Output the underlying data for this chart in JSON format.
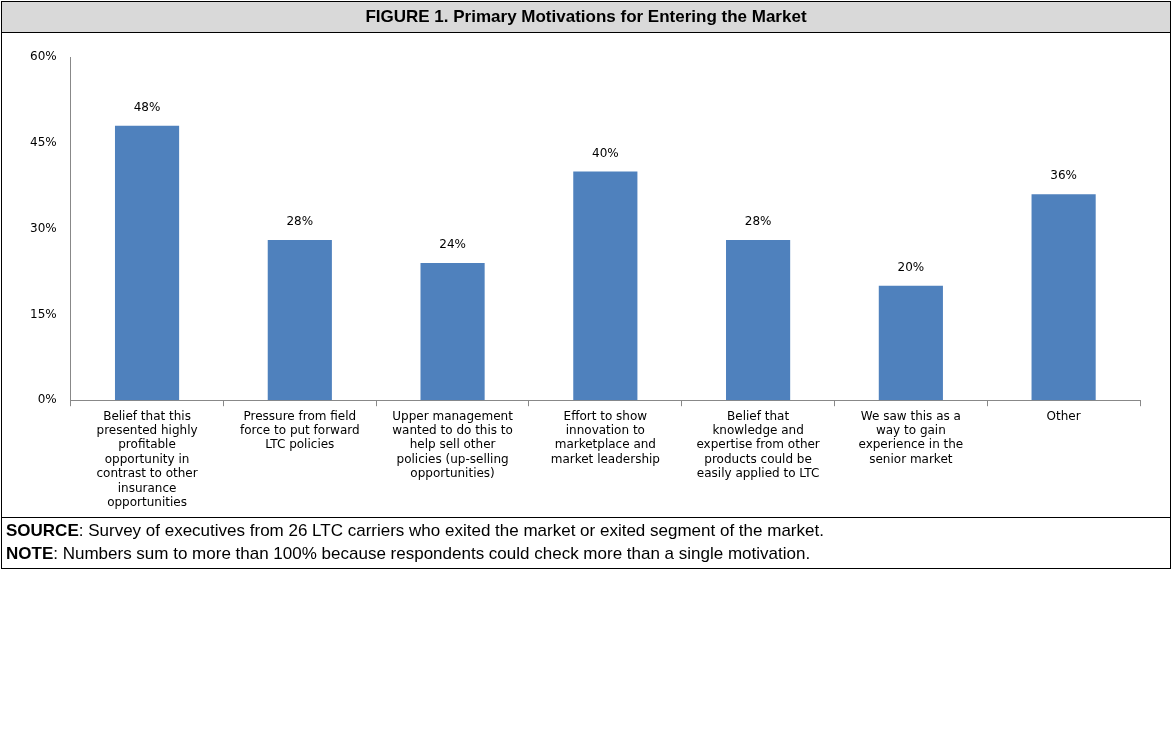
{
  "chart_data": {
    "type": "bar",
    "title": "FIGURE 1. Primary Motivations for Entering the Market",
    "categories": [
      "Belief that this presented highly profitable opportunity in contrast to other insurance opportunities",
      "Pressure from field force to put forward LTC policies",
      "Upper management wanted to do this to help sell other policies (up-selling opportunities)",
      "Effort to show innovation to marketplace and market leadership",
      "Belief that knowledge and expertise from other products could be easily applied to LTC",
      "We saw this as a way to gain experience in the senior market",
      "Other"
    ],
    "values": [
      48,
      28,
      24,
      40,
      28,
      20,
      36
    ],
    "value_labels": [
      "48%",
      "28%",
      "24%",
      "40%",
      "28%",
      "20%",
      "36%"
    ],
    "color": "#4f81bd",
    "ylim": [
      0,
      60
    ],
    "yticks": [
      {
        "value": 0,
        "label": "0%"
      },
      {
        "value": 15,
        "label": "15%"
      },
      {
        "value": 30,
        "label": "30%"
      },
      {
        "value": 45,
        "label": "45%"
      },
      {
        "value": 60,
        "label": "60%"
      }
    ],
    "grid": false,
    "legend": false,
    "annotations": [
      "SOURCE: Survey of executives from 26 LTC carriers who exited the market or exited segment of the market.",
      "NOTE: Numbers sum to more than 100% because respondents could check more than a single motivation."
    ]
  }
}
